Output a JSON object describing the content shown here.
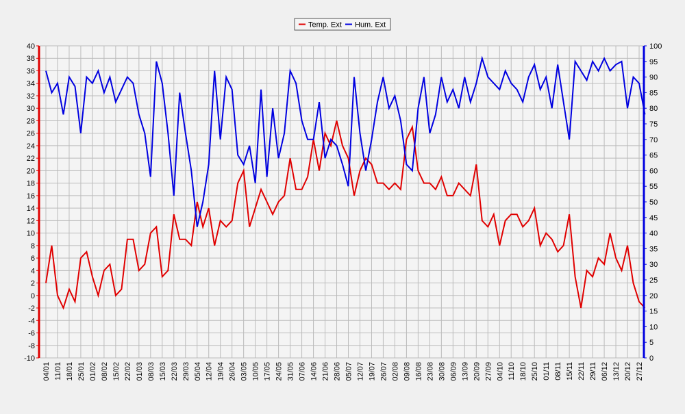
{
  "chart_data": {
    "type": "line",
    "categories": [
      "04/01",
      null,
      "11/01",
      null,
      "18/01",
      null,
      "25/01",
      null,
      "01/02",
      null,
      "08/02",
      null,
      "15/02",
      null,
      "22/02",
      null,
      "01/03",
      null,
      "08/03",
      null,
      "15/03",
      null,
      "22/03",
      null,
      "29/03",
      null,
      "05/04",
      null,
      "12/04",
      null,
      "19/04",
      null,
      "26/04",
      null,
      "03/05",
      null,
      "10/05",
      null,
      "17/05",
      null,
      "24/05",
      null,
      "31/05",
      null,
      "07/06",
      null,
      "14/06",
      null,
      "21/06",
      null,
      "28/06",
      null,
      "05/07",
      null,
      "12/07",
      null,
      "19/07",
      null,
      "26/07",
      null,
      "02/08",
      null,
      "09/08",
      null,
      "16/08",
      null,
      "23/08",
      null,
      "30/08",
      null,
      "06/09",
      null,
      "13/09",
      null,
      "20/09",
      null,
      "27/09",
      null,
      "04/10",
      null,
      "11/10",
      null,
      "18/10",
      null,
      "25/10",
      null,
      "01/11",
      null,
      "08/11",
      null,
      "15/11",
      null,
      "22/11",
      null,
      "29/11",
      null,
      "06/12",
      null,
      "13/12",
      null,
      "20/12",
      null,
      "27/12",
      null
    ],
    "series": [
      {
        "name": "Temp. Ext",
        "color": "#e00000",
        "values": [
          2,
          8,
          0,
          -2,
          1,
          -1,
          6,
          7,
          3,
          0,
          4,
          5,
          0,
          1,
          9,
          9,
          4,
          5,
          10,
          11,
          3,
          4,
          13,
          9,
          9,
          8,
          15,
          11,
          14,
          8,
          12,
          11,
          12,
          18,
          20,
          11,
          14,
          17,
          15,
          13,
          15,
          16,
          22,
          17,
          17,
          19,
          25,
          20,
          26,
          24,
          28,
          24,
          22,
          16,
          20,
          22,
          21,
          18,
          18,
          17,
          18,
          17,
          25,
          27,
          20,
          18,
          18,
          17,
          19,
          16,
          16,
          18,
          17,
          16,
          21,
          12,
          11,
          13,
          8,
          12,
          13,
          13,
          11,
          12,
          14,
          8,
          10,
          9,
          7,
          8,
          13,
          3,
          -2,
          4,
          3,
          6,
          5,
          10,
          6,
          4,
          8,
          2,
          -1,
          -2
        ]
      },
      {
        "name": "Hum. Ext",
        "color": "#0000e0",
        "axis": "y2",
        "values": [
          92,
          85,
          88,
          78,
          90,
          87,
          72,
          90,
          88,
          92,
          85,
          90,
          82,
          86,
          90,
          88,
          78,
          72,
          58,
          95,
          88,
          72,
          52,
          85,
          72,
          60,
          42,
          50,
          62,
          92,
          70,
          90,
          86,
          65,
          62,
          68,
          56,
          86,
          58,
          80,
          64,
          72,
          92,
          88,
          76,
          70,
          70,
          82,
          64,
          70,
          68,
          62,
          55,
          90,
          72,
          60,
          70,
          82,
          90,
          80,
          84,
          76,
          62,
          60,
          80,
          90,
          72,
          78,
          90,
          82,
          86,
          80,
          90,
          82,
          88,
          96,
          90,
          88,
          86,
          92,
          88,
          86,
          82,
          90,
          94,
          86,
          90,
          80,
          94,
          82,
          70,
          95,
          92,
          89,
          95,
          92,
          96,
          92,
          94,
          95,
          80,
          90,
          88,
          78
        ]
      }
    ],
    "ylim": [
      -10,
      40
    ],
    "yticks": [
      -10,
      -8,
      -6,
      -4,
      -2,
      0,
      2,
      4,
      6,
      8,
      10,
      12,
      14,
      16,
      18,
      20,
      22,
      24,
      26,
      28,
      30,
      32,
      34,
      36,
      38,
      40
    ],
    "y2lim": [
      0,
      100
    ],
    "y2ticks": [
      0,
      5,
      10,
      15,
      20,
      25,
      30,
      35,
      40,
      45,
      50,
      55,
      60,
      65,
      70,
      75,
      80,
      85,
      90,
      95,
      100
    ],
    "grid": true,
    "legend": "top"
  }
}
